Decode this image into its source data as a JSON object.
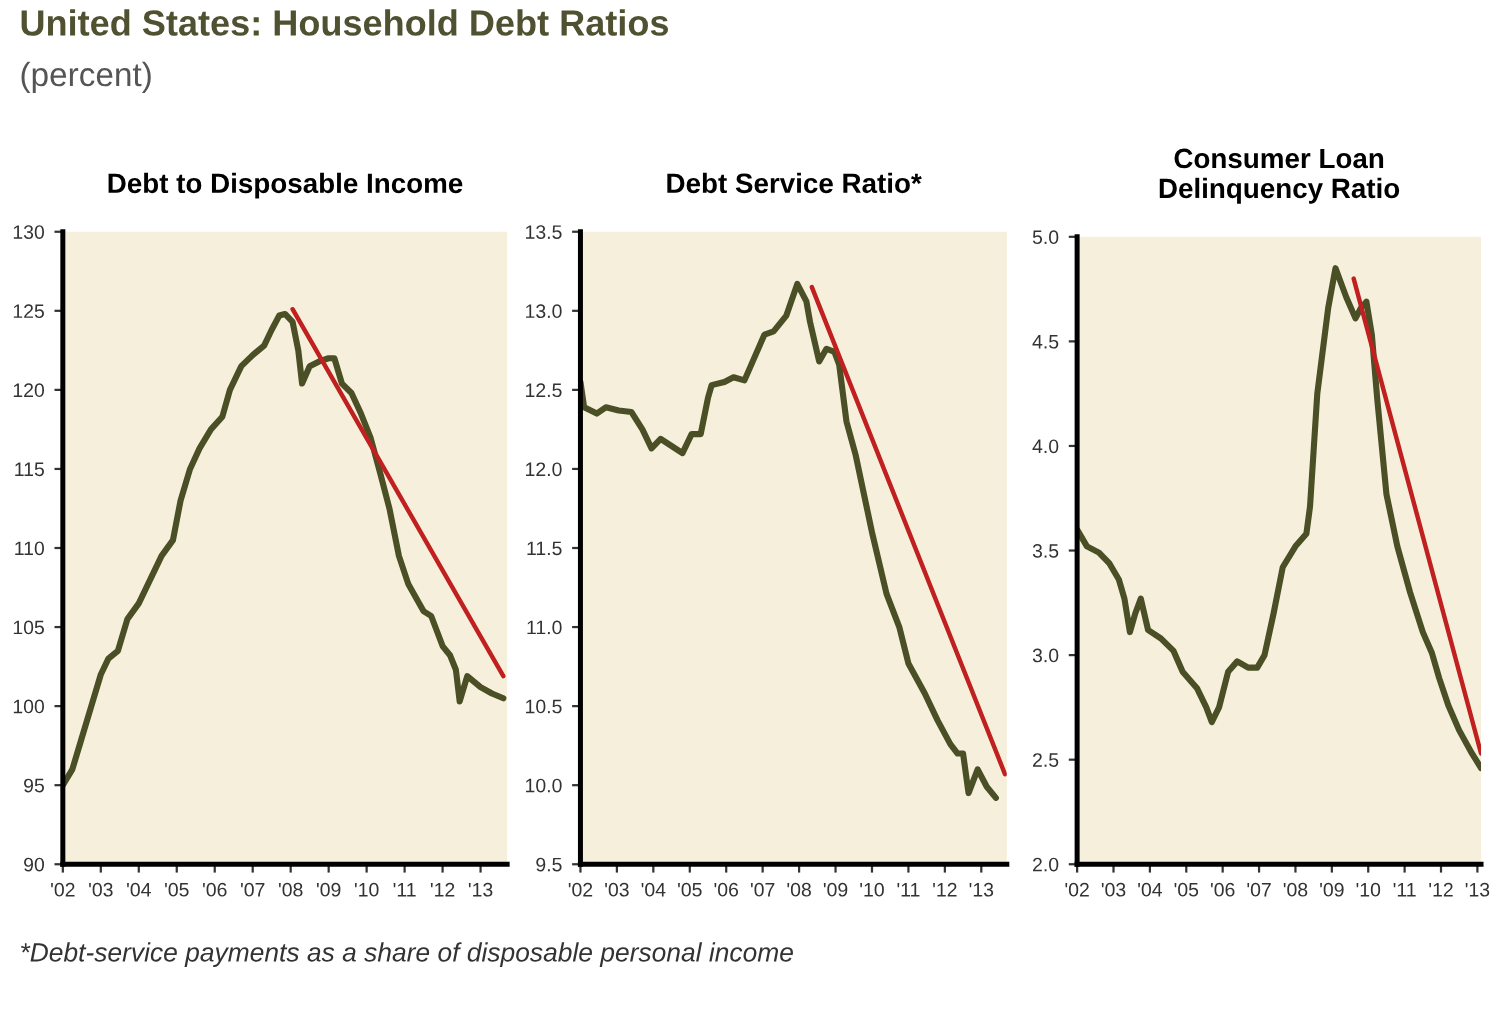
{
  "chart_data": [
    {
      "type": "line",
      "title": "Debt to Disposable Income",
      "annotations": [
        "United States: Household Debt Ratios",
        "(percent)"
      ],
      "series": [
        {
          "color": "#4a4f26",
          "x": [
            2002.0,
            2002.25,
            2002.5,
            2002.75,
            2003.0,
            2003.2,
            2003.45,
            2003.7,
            2004.0,
            2004.3,
            2004.6,
            2004.9,
            2005.1,
            2005.35,
            2005.6,
            2005.9,
            2006.2,
            2006.4,
            2006.7,
            2007.0,
            2007.3,
            2007.5,
            2007.7,
            2007.85,
            2008.05,
            2008.2,
            2008.3,
            2008.5,
            2008.75,
            2009.0,
            2009.15,
            2009.35,
            2009.6,
            2009.85,
            2010.1,
            2010.35,
            2010.6,
            2010.85,
            2011.1,
            2011.5,
            2011.7,
            2012.0,
            2012.2,
            2012.35,
            2012.45,
            2012.65,
            2013.0,
            2013.3,
            2013.6
          ],
          "values": [
            95,
            96,
            98,
            100,
            102,
            103,
            103.5,
            105.5,
            106.5,
            108,
            109.5,
            110.5,
            113,
            115,
            116.3,
            117.5,
            118.3,
            120,
            121.5,
            122.2,
            122.8,
            123.8,
            124.7,
            124.8,
            124.3,
            122.5,
            120.4,
            121.5,
            121.8,
            122,
            122,
            120.4,
            119.8,
            118.5,
            117,
            114.8,
            112.5,
            109.5,
            107.7,
            106,
            105.7,
            103.8,
            103.2,
            102.3,
            100.3,
            101.9,
            101.2,
            100.8,
            100.5
          ]
        },
        {
          "color": "#c0201f",
          "x": [
            2008.05,
            2013.6
          ],
          "values": [
            125.1,
            101.9
          ]
        }
      ],
      "xlim": [
        2002,
        2013.7
      ],
      "ylim": [
        90,
        130
      ],
      "xticks": [
        {
          "value": 2002,
          "label": "'02"
        },
        {
          "value": 2003,
          "label": "'03"
        },
        {
          "value": 2004,
          "label": "'04"
        },
        {
          "value": 2005,
          "label": "'05"
        },
        {
          "value": 2006,
          "label": "'06"
        },
        {
          "value": 2007,
          "label": "'07"
        },
        {
          "value": 2008,
          "label": "'08"
        },
        {
          "value": 2009,
          "label": "'09"
        },
        {
          "value": 2010,
          "label": "'10"
        },
        {
          "value": 2011,
          "label": "'11"
        },
        {
          "value": 2012,
          "label": "'12"
        },
        {
          "value": 2013,
          "label": "'13"
        }
      ],
      "yticks": [
        90,
        95,
        100,
        105,
        110,
        115,
        120,
        125,
        130
      ]
    },
    {
      "type": "line",
      "title": "Debt Service Ratio*",
      "annotations": [
        "*Debt-service payments as a share of disposable personal income"
      ],
      "series": [
        {
          "color": "#4a4f26",
          "x": [
            2002.0,
            2002.1,
            2002.45,
            2002.7,
            2003.05,
            2003.4,
            2003.7,
            2003.95,
            2004.2,
            2004.6,
            2004.8,
            2005.05,
            2005.3,
            2005.5,
            2005.6,
            2005.95,
            2006.2,
            2006.5,
            2007.05,
            2007.3,
            2007.65,
            2007.95,
            2008.2,
            2008.3,
            2008.55,
            2008.75,
            2008.97,
            2009.1,
            2009.3,
            2009.55,
            2010.0,
            2010.4,
            2010.75,
            2011.0,
            2011.45,
            2011.8,
            2012.15,
            2012.35,
            2012.5,
            2012.65,
            2012.9,
            2013.15,
            2013.4
          ],
          "values": [
            12.55,
            12.39,
            12.35,
            12.39,
            12.37,
            12.36,
            12.25,
            12.13,
            12.19,
            12.13,
            12.1,
            12.22,
            12.22,
            12.45,
            12.53,
            12.55,
            12.58,
            12.56,
            12.85,
            12.87,
            12.97,
            13.17,
            13.06,
            12.93,
            12.68,
            12.76,
            12.74,
            12.66,
            12.3,
            12.09,
            11.6,
            11.21,
            11.0,
            10.77,
            10.58,
            10.41,
            10.26,
            10.2,
            10.2,
            9.95,
            10.1,
            9.99,
            9.92
          ]
        },
        {
          "color": "#c0201f",
          "x": [
            2008.35,
            2013.65
          ],
          "values": [
            13.15,
            10.07
          ]
        }
      ],
      "xlim": [
        2002,
        2013.7
      ],
      "ylim": [
        9.5,
        13.5
      ],
      "xticks": [
        {
          "value": 2002,
          "label": "'02"
        },
        {
          "value": 2003,
          "label": "'03"
        },
        {
          "value": 2004,
          "label": "'04"
        },
        {
          "value": 2005,
          "label": "'05"
        },
        {
          "value": 2006,
          "label": "'06"
        },
        {
          "value": 2007,
          "label": "'07"
        },
        {
          "value": 2008,
          "label": "'08"
        },
        {
          "value": 2009,
          "label": "'09"
        },
        {
          "value": 2010,
          "label": "'10"
        },
        {
          "value": 2011,
          "label": "'11"
        },
        {
          "value": 2012,
          "label": "'12"
        },
        {
          "value": 2013,
          "label": "'13"
        }
      ],
      "yticks": [
        9.5,
        {
          "value": 10,
          "label": "10.0"
        },
        10.5,
        {
          "value": 11,
          "label": "11.0"
        },
        11.5,
        {
          "value": 12,
          "label": "12.0"
        },
        12.5,
        {
          "value": 13,
          "label": "13.0"
        },
        13.5
      ]
    },
    {
      "type": "line",
      "title": "Consumer Loan\nDelinquency Ratio",
      "series": [
        {
          "color": "#4a4f26",
          "x": [
            2002.0,
            2002.27,
            2002.6,
            2002.88,
            2003.15,
            2003.3,
            2003.45,
            2003.6,
            2003.75,
            2003.95,
            2004.3,
            2004.65,
            2004.9,
            2005.3,
            2005.55,
            2005.7,
            2005.9,
            2006.15,
            2006.4,
            2006.7,
            2006.95,
            2007.15,
            2007.4,
            2007.65,
            2008.0,
            2008.3,
            2008.4,
            2008.6,
            2008.9,
            2009.1,
            2009.4,
            2009.65,
            2009.8,
            2009.95,
            2010.1,
            2010.25,
            2010.5,
            2010.8,
            2011.15,
            2011.5,
            2011.75,
            2011.95,
            2012.2,
            2012.5,
            2012.85,
            2013.1
          ],
          "values": [
            3.6,
            3.52,
            3.49,
            3.44,
            3.36,
            3.27,
            3.11,
            3.2,
            3.27,
            3.12,
            3.08,
            3.02,
            2.92,
            2.84,
            2.75,
            2.68,
            2.75,
            2.92,
            2.97,
            2.94,
            2.94,
            3.0,
            3.2,
            3.42,
            3.52,
            3.58,
            3.71,
            4.25,
            4.66,
            4.85,
            4.71,
            4.61,
            4.66,
            4.69,
            4.53,
            4.22,
            3.77,
            3.52,
            3.3,
            3.11,
            3.01,
            2.89,
            2.76,
            2.64,
            2.53,
            2.46
          ]
        },
        {
          "color": "#c0201f",
          "x": [
            2009.6,
            2013.1
          ],
          "values": [
            4.8,
            2.53
          ]
        }
      ],
      "xlim": [
        2002,
        2013.1
      ],
      "ylim": [
        2.0,
        5.0
      ],
      "xticks": [
        {
          "value": 2002,
          "label": "'02"
        },
        {
          "value": 2003,
          "label": "'03"
        },
        {
          "value": 2004,
          "label": "'04"
        },
        {
          "value": 2005,
          "label": "'05"
        },
        {
          "value": 2006,
          "label": "'06"
        },
        {
          "value": 2007,
          "label": "'07"
        },
        {
          "value": 2008,
          "label": "'08"
        },
        {
          "value": 2009,
          "label": "'09"
        },
        {
          "value": 2010,
          "label": "'10"
        },
        {
          "value": 2011,
          "label": "'11"
        },
        {
          "value": 2012,
          "label": "'12"
        },
        {
          "value": 2013,
          "label": "'13"
        }
      ],
      "yticks": [
        {
          "value": 2,
          "label": "2.0"
        },
        2.5,
        {
          "value": 3,
          "label": "3.0"
        },
        3.5,
        {
          "value": 4,
          "label": "4.0"
        },
        4.5,
        {
          "value": 5,
          "label": "5.0"
        }
      ]
    }
  ]
}
